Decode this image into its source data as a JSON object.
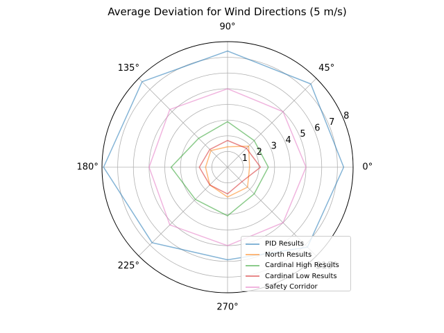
{
  "chart_data": {
    "type": "line",
    "projection": "polar",
    "title": "Average Deviation for Wind Directions (5 m/s)",
    "theta_deg": [
      0,
      45,
      90,
      135,
      180,
      225,
      270,
      315
    ],
    "theta_tick_labels": [
      "0°",
      "45°",
      "90°",
      "135°",
      "180°",
      "225°",
      "270°",
      "315°"
    ],
    "r_ticks": [
      1,
      2,
      3,
      4,
      5,
      6,
      7,
      8
    ],
    "r_tick_labels": [
      "1",
      "2",
      "3",
      "4",
      "5",
      "6",
      "7",
      "8"
    ],
    "rlim": [
      0,
      8
    ],
    "grid": true,
    "legend_location": "lower right",
    "series": [
      {
        "name": "PID Results",
        "color": "#1f77b4",
        "values": [
          7.4,
          7.5,
          7.4,
          7.7,
          7.9,
          6.8,
          5.9,
          7.2
        ]
      },
      {
        "name": "North Results",
        "color": "#ff7f0e",
        "values": [
          1.4,
          1.9,
          1.3,
          1.5,
          1.4,
          1.6,
          1.9,
          1.8
        ]
      },
      {
        "name": "Cardinal High Results",
        "color": "#2ca02c",
        "values": [
          2.6,
          2.4,
          2.9,
          2.6,
          3.6,
          2.9,
          3.1,
          2.4
        ]
      },
      {
        "name": "Cardinal Low Results",
        "color": "#d62728",
        "values": [
          2.1,
          1.7,
          1.7,
          1.6,
          1.8,
          1.6,
          1.7,
          1.3
        ]
      },
      {
        "name": "Safety Corridor",
        "color": "#e377c2",
        "values": [
          5.0,
          5.0,
          5.0,
          5.2,
          5.0,
          5.2,
          5.0,
          5.0
        ]
      }
    ]
  }
}
